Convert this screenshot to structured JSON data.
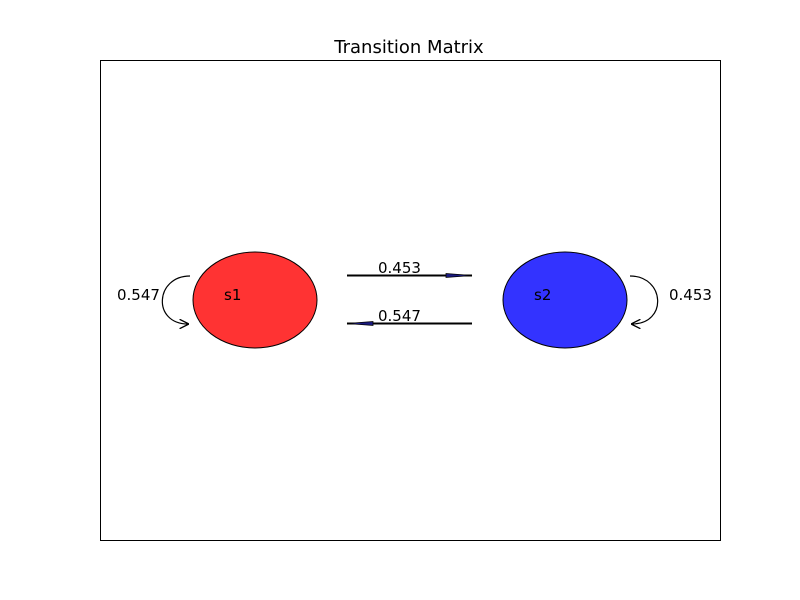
{
  "title": "Transition Matrix",
  "states": [
    {
      "label": "s1",
      "color": "#ff3333"
    },
    {
      "label": "s2",
      "color": "#3333ff"
    }
  ],
  "transitions": {
    "s1_to_s1": "0.547",
    "s1_to_s2": "0.453",
    "s2_to_s1": "0.547",
    "s2_to_s2": "0.453"
  },
  "colors": {
    "edge_outline": "#000000",
    "arrow_head": "#1a1a80"
  }
}
